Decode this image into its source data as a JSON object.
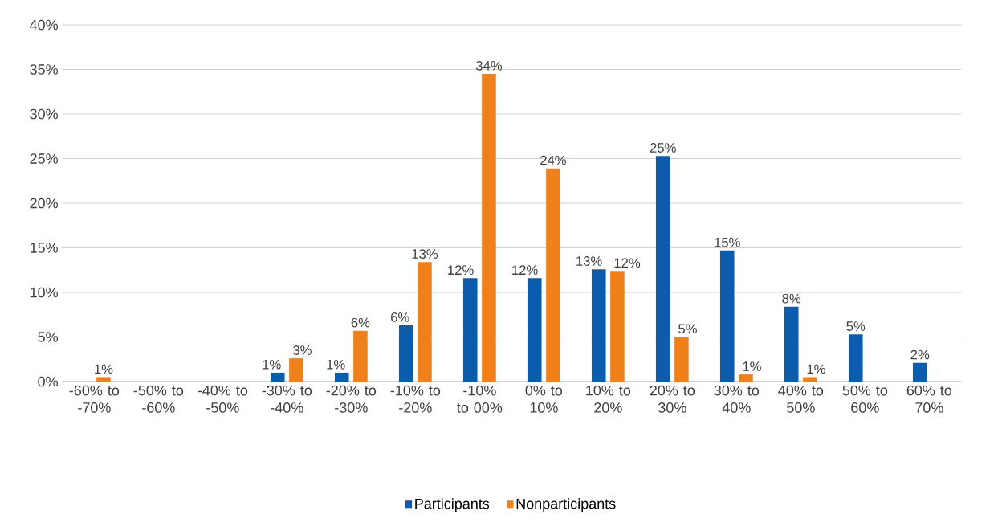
{
  "chart_data": {
    "type": "bar",
    "categories": [
      "-60% to -70%",
      "-50% to -60%",
      "-40% to -50%",
      "-30% to -40%",
      "-20% to -30%",
      "-10% to -20%",
      "-10% to 00%",
      "0% to 10%",
      "10% to 20%",
      "20% to 30%",
      "30% to 40%",
      "40% to 50%",
      "50% to 60%",
      "60% to 70%"
    ],
    "series": [
      {
        "name": "Participants",
        "color": "#0b5cad",
        "values": [
          0,
          0,
          0,
          1.0,
          1.0,
          6.3,
          11.6,
          11.6,
          12.6,
          25.3,
          14.7,
          8.4,
          5.3,
          2.1
        ],
        "value_labels": [
          null,
          null,
          null,
          "1%",
          "1%",
          "6%",
          "12%",
          "12%",
          "13%",
          "25%",
          "15%",
          "8%",
          "5%",
          "2%"
        ]
      },
      {
        "name": "Nonparticipants",
        "color": "#f0801a",
        "values": [
          0.5,
          0,
          0,
          2.6,
          5.7,
          13.4,
          34.5,
          23.9,
          12.4,
          5.0,
          0.8,
          0.5,
          0,
          0
        ],
        "value_labels": [
          "1%",
          null,
          null,
          "3%",
          "6%",
          "13%",
          "34%",
          "24%",
          "12%",
          "5%",
          "1%",
          "1%",
          null,
          null
        ]
      }
    ],
    "ylim": [
      0,
      40
    ],
    "yticks": [
      {
        "value": 0,
        "label": "0%"
      },
      {
        "value": 5,
        "label": "5%"
      },
      {
        "value": 10,
        "label": "10%"
      },
      {
        "value": 15,
        "label": "15%"
      },
      {
        "value": 20,
        "label": "20%"
      },
      {
        "value": 25,
        "label": "25%"
      },
      {
        "value": 30,
        "label": "30%"
      },
      {
        "value": 35,
        "label": "35%"
      },
      {
        "value": 40,
        "label": "40%"
      }
    ],
    "grid": "y",
    "legend": "bottom"
  }
}
